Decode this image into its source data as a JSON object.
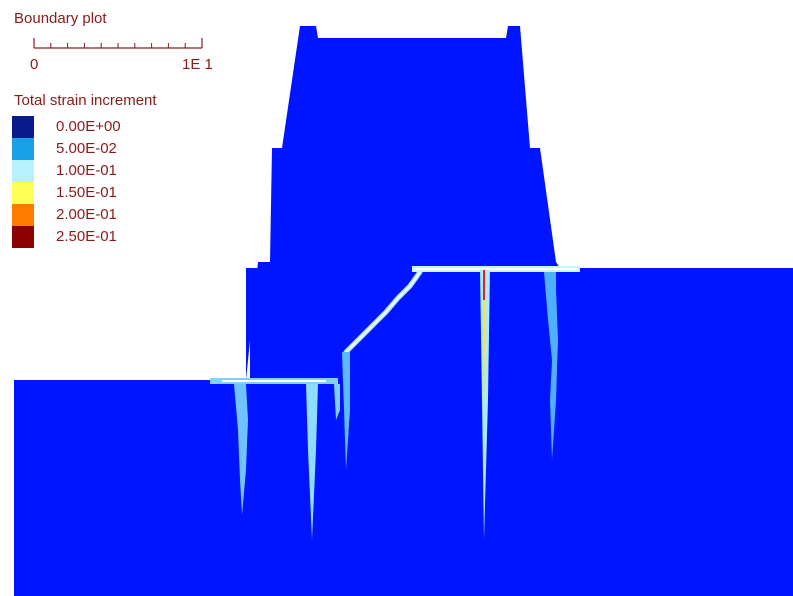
{
  "title": "Boundary plot",
  "scale": {
    "start_label": "0",
    "end_label": "1E 1"
  },
  "legend": {
    "title": "Total strain increment",
    "entries": [
      {
        "label": "0.00E+00",
        "color": "#0a1a8c"
      },
      {
        "label": "5.00E-02",
        "color": "#1aa0e6"
      },
      {
        "label": "1.00E-01",
        "color": "#b8f0ff"
      },
      {
        "label": "1.50E-01",
        "color": "#ffff55"
      },
      {
        "label": "2.00E-01",
        "color": "#ff7a00"
      },
      {
        "label": "2.50E-01",
        "color": "#8b0000"
      }
    ]
  },
  "colors": {
    "model_fill": "#0014ff",
    "strain_low": "#40a0ff",
    "strain_mid": "#c8f4ff",
    "strain_high": "#ffe040",
    "strain_peak": "#e02020",
    "label_text": "#8b1a1a"
  }
}
